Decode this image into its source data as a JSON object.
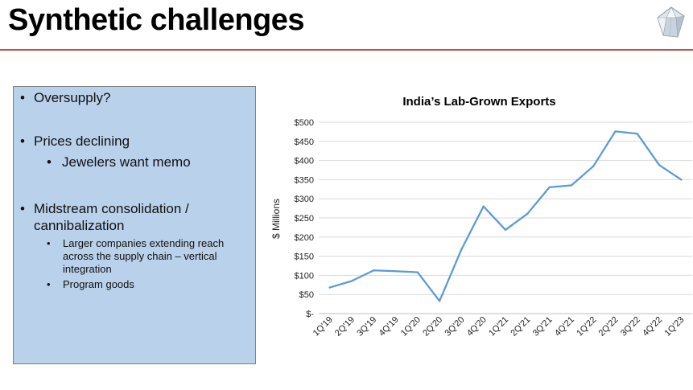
{
  "slide": {
    "title": "Synthetic challenges"
  },
  "bullets": {
    "b1": "Oversupply?",
    "b2": "Prices declining",
    "b2_sub1": "Jewelers want memo",
    "b3_line1": "Midstream consolidation /",
    "b3_line2": "cannibalization",
    "b3_sub1_line1": "Larger companies extending reach",
    "b3_sub1_line2": "across the supply chain – vertical",
    "b3_sub1_line3": "integration",
    "b3_sub2": "Program goods",
    "bullet_char": "•"
  },
  "chart_data": {
    "type": "line",
    "title": "India’s Lab-Grown Exports",
    "ylabel": "$ Millions",
    "xlabel": "",
    "categories": [
      "1Q'19",
      "2Q'19",
      "3Q'19",
      "4Q'19",
      "1Q'20",
      "2Q'20",
      "3Q'20",
      "4Q'20",
      "1Q'21",
      "2Q'21",
      "3Q'21",
      "4Q'21",
      "1Q'22",
      "2Q'22",
      "3Q'22",
      "4Q'22",
      "1Q'23"
    ],
    "values": [
      68,
      85,
      113,
      111,
      108,
      33,
      168,
      280,
      219,
      261,
      330,
      335,
      385,
      476,
      470,
      388,
      350
    ],
    "yticks": [
      "$-",
      "$50",
      "$100",
      "$150",
      "$200",
      "$250",
      "$300",
      "$350",
      "$400",
      "$450",
      "$500"
    ],
    "ylim": [
      0,
      500
    ],
    "grid": true,
    "line_color": "#5b9bd5"
  }
}
